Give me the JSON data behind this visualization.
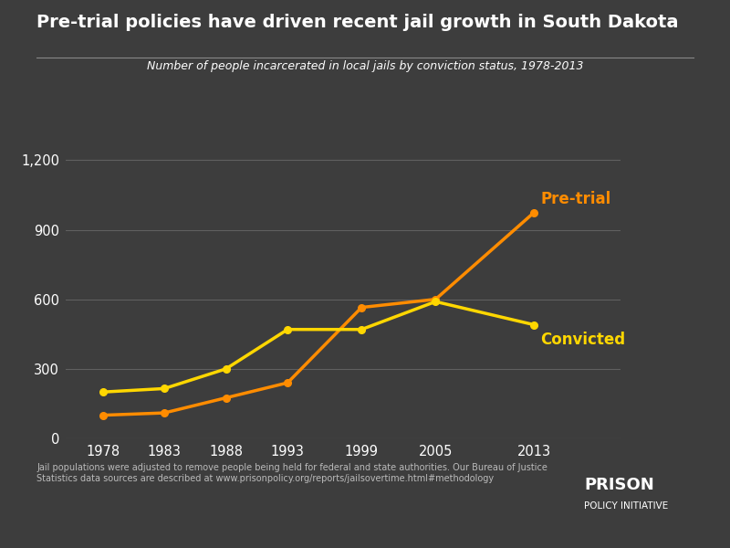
{
  "title": "Pre-trial policies have driven recent jail growth in South Dakota",
  "subtitle": "Number of people incarcerated in local jails by conviction status, 1978-2013",
  "years": [
    1978,
    1983,
    1988,
    1993,
    1999,
    2005,
    2013
  ],
  "pretrial": [
    100,
    110,
    175,
    240,
    565,
    600,
    975
  ],
  "convicted": [
    200,
    215,
    300,
    470,
    470,
    590,
    490
  ],
  "pretrial_color": "#FF8C00",
  "convicted_color": "#FFD700",
  "pretrial_label": "Pre-trial",
  "convicted_label": "Convicted",
  "background_color": "#3d3d3d",
  "text_color": "#FFFFFF",
  "grid_color": "#606060",
  "yticks": [
    0,
    300,
    600,
    900,
    1200
  ],
  "ylim": [
    0,
    1300
  ],
  "xlim": [
    1975,
    2020
  ],
  "footnote": "Jail populations were adjusted to remove people being held for federal and state authorities. Our Bureau of Justice\nStatistics data sources are described at www.prisonpolicy.org/reports/jailsovertime.html#methodology",
  "logo_text1": "PRISON",
  "logo_text2": "POLICY INITIATIVE"
}
